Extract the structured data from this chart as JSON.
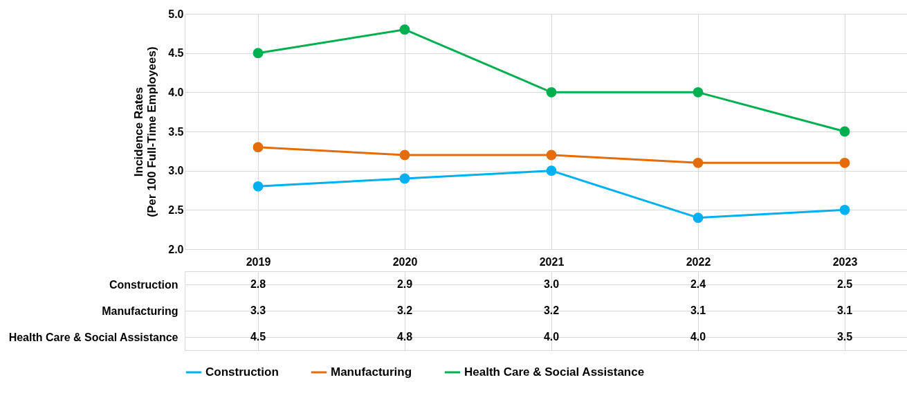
{
  "chart_data": {
    "type": "line",
    "ylabel": "Incidence Rates\n(Per 100 Full-Time Employees)",
    "categories": [
      "2019",
      "2020",
      "2021",
      "2022",
      "2023"
    ],
    "series": [
      {
        "name": "Construction",
        "color": "#00b0f0",
        "values": [
          2.8,
          2.9,
          3.0,
          2.4,
          2.5
        ],
        "value_labels": [
          "2.8",
          "2.9",
          "3.0",
          "2.4",
          "2.5"
        ]
      },
      {
        "name": "Manufacturing",
        "color": "#e46c0a",
        "values": [
          3.3,
          3.2,
          3.2,
          3.1,
          3.1
        ],
        "value_labels": [
          "3.3",
          "3.2",
          "3.2",
          "3.1",
          "3.1"
        ]
      },
      {
        "name": "Health Care & Social Assistance",
        "color": "#00b050",
        "values": [
          4.5,
          4.8,
          4.0,
          4.0,
          3.5
        ],
        "value_labels": [
          "4.5",
          "4.8",
          "4.0",
          "4.0",
          "3.5"
        ]
      }
    ],
    "ylim": [
      2.0,
      5.0
    ],
    "yticks": [
      {
        "value": 2.0,
        "label": "2.0"
      },
      {
        "value": 2.5,
        "label": "2.5"
      },
      {
        "value": 3.0,
        "label": "3.0"
      },
      {
        "value": 3.5,
        "label": "3.5"
      },
      {
        "value": 4.0,
        "label": "4.0"
      },
      {
        "value": 4.5,
        "label": "4.5"
      },
      {
        "value": 5.0,
        "label": "5.0"
      }
    ],
    "grid": true,
    "legend": "bottom",
    "marker": "circle",
    "line_style": "solid"
  }
}
